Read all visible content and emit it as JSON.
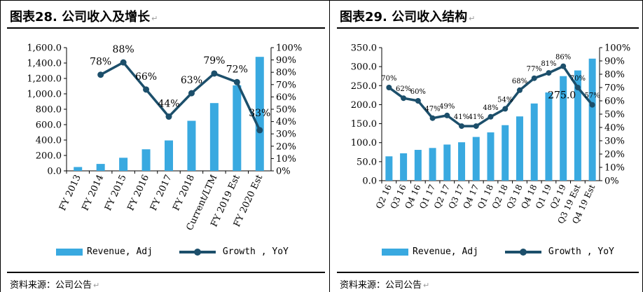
{
  "panels": [
    {
      "title": "图表28. 公司收入及增长",
      "source": "资料来源：公司公告",
      "legend": {
        "bar": "Revenue, Adj",
        "line": "Growth , YoY"
      }
    },
    {
      "title": "图表29. 公司收入结构",
      "source": "资料来源：公司公告",
      "legend": {
        "bar": "Revenue, Adj",
        "line": "Growth , YoY"
      }
    }
  ],
  "colors": {
    "bar": "#39a9e0",
    "line": "#1c4f6b",
    "axis": "#000000"
  },
  "edit_mark": "↵",
  "chart_data": [
    {
      "type": "bar",
      "categories": [
        "FY 2013",
        "FY 2014",
        "FY 2015",
        "FY 2016",
        "FY 2017",
        "FY 2018",
        "Current/LTM",
        "FY 2019 Est",
        "FY 2020 Est"
      ],
      "series": [
        {
          "name": "Revenue, Adj",
          "type": "bar",
          "axis": "left",
          "values": [
            50,
            90,
            170,
            280,
            395,
            650,
            880,
            1110,
            1480
          ]
        },
        {
          "name": "Growth , YoY",
          "type": "line",
          "axis": "right",
          "values": [
            null,
            78,
            88,
            66,
            44,
            63,
            79,
            72,
            33
          ]
        }
      ],
      "data_labels": [
        "",
        "78%",
        "88%",
        "66%",
        "44%",
        "63%",
        "79%",
        "72%",
        "33%"
      ],
      "ylim": [
        0,
        1600
      ],
      "yticks": [
        "0.0",
        "200.0",
        "400.0",
        "600.0",
        "800.0",
        "1,000.0",
        "1,200.0",
        "1,400.0",
        "1,600.0"
      ],
      "y2lim": [
        0,
        100
      ],
      "y2ticks": [
        "0%",
        "10%",
        "20%",
        "30%",
        "40%",
        "50%",
        "60%",
        "70%",
        "80%",
        "90%",
        "100%"
      ],
      "legend_position": "bottom"
    },
    {
      "type": "bar",
      "categories": [
        "Q2 16",
        "Q3 16",
        "Q4 16",
        "Q1 17",
        "Q2 17",
        "Q3 17",
        "Q4 17",
        "Q1 18",
        "Q2 18",
        "Q3 18",
        "Q4 18",
        "Q1 19",
        "Q2 19",
        "Q3 19 Est",
        "Q4 19 Est"
      ],
      "series": [
        {
          "name": "Revenue, Adj",
          "type": "bar",
          "axis": "left",
          "values": [
            64,
            72,
            81,
            86,
            95,
            101,
            115,
            127,
            146,
            169,
            203,
            232,
            275,
            290,
            321
          ]
        },
        {
          "name": "Growth , YoY",
          "type": "line",
          "axis": "right",
          "values": [
            70,
            62,
            60,
            47,
            49,
            41,
            41,
            48,
            54,
            68,
            77,
            81,
            86,
            70,
            57
          ]
        }
      ],
      "data_labels": [
        "70%",
        "62%",
        "60%",
        "47%",
        "49%",
        "41%",
        "41%",
        "48%",
        "54%",
        "68%",
        "77%",
        "81%",
        "86%",
        "70%",
        "57%"
      ],
      "bar_annotation": {
        "index": 12,
        "text": "275.0"
      },
      "ylim": [
        0,
        350
      ],
      "yticks": [
        "0.0",
        "50.0",
        "100.0",
        "150.0",
        "200.0",
        "250.0",
        "300.0",
        "350.0"
      ],
      "y2lim": [
        0,
        100
      ],
      "y2ticks": [
        "0%",
        "10%",
        "20%",
        "30%",
        "40%",
        "50%",
        "60%",
        "70%",
        "80%",
        "90%",
        "100%"
      ],
      "legend_position": "bottom"
    }
  ]
}
